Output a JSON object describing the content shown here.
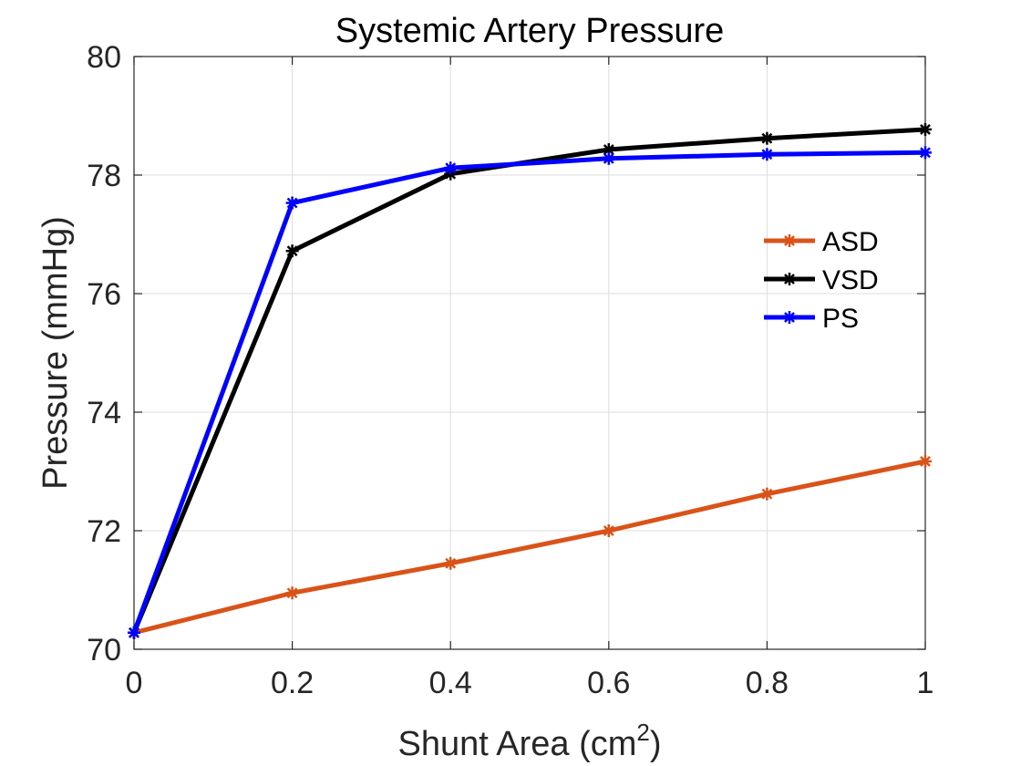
{
  "chart_data": {
    "type": "line",
    "title": "Systemic Artery Pressure",
    "xlabel": "Shunt Area (cm",
    "xlabel_superscript": "2",
    "xlabel_suffix": ")",
    "ylabel": "Pressure (mmHg)",
    "x": [
      0,
      0.2,
      0.4,
      0.6,
      0.8,
      1
    ],
    "xlim": [
      0,
      1
    ],
    "ylim": [
      70,
      80
    ],
    "x_ticks": [
      0,
      0.2,
      0.4,
      0.6,
      0.8,
      1
    ],
    "x_tick_labels": [
      "0",
      "0.2",
      "0.4",
      "0.6",
      "0.8",
      "1"
    ],
    "y_ticks": [
      70,
      72,
      74,
      76,
      78,
      80
    ],
    "y_tick_labels": [
      "70",
      "72",
      "74",
      "76",
      "78",
      "80"
    ],
    "grid": true,
    "legend_position": "right",
    "series": [
      {
        "name": "ASD",
        "color": "#d95319",
        "values": [
          70.28,
          70.95,
          71.45,
          72.0,
          72.62,
          73.17
        ]
      },
      {
        "name": "VSD",
        "color": "#000000",
        "values": [
          70.28,
          76.72,
          78.02,
          78.43,
          78.62,
          78.77
        ]
      },
      {
        "name": "PS",
        "color": "#0000ff",
        "values": [
          70.28,
          77.53,
          78.12,
          78.28,
          78.35,
          78.38
        ]
      }
    ]
  }
}
